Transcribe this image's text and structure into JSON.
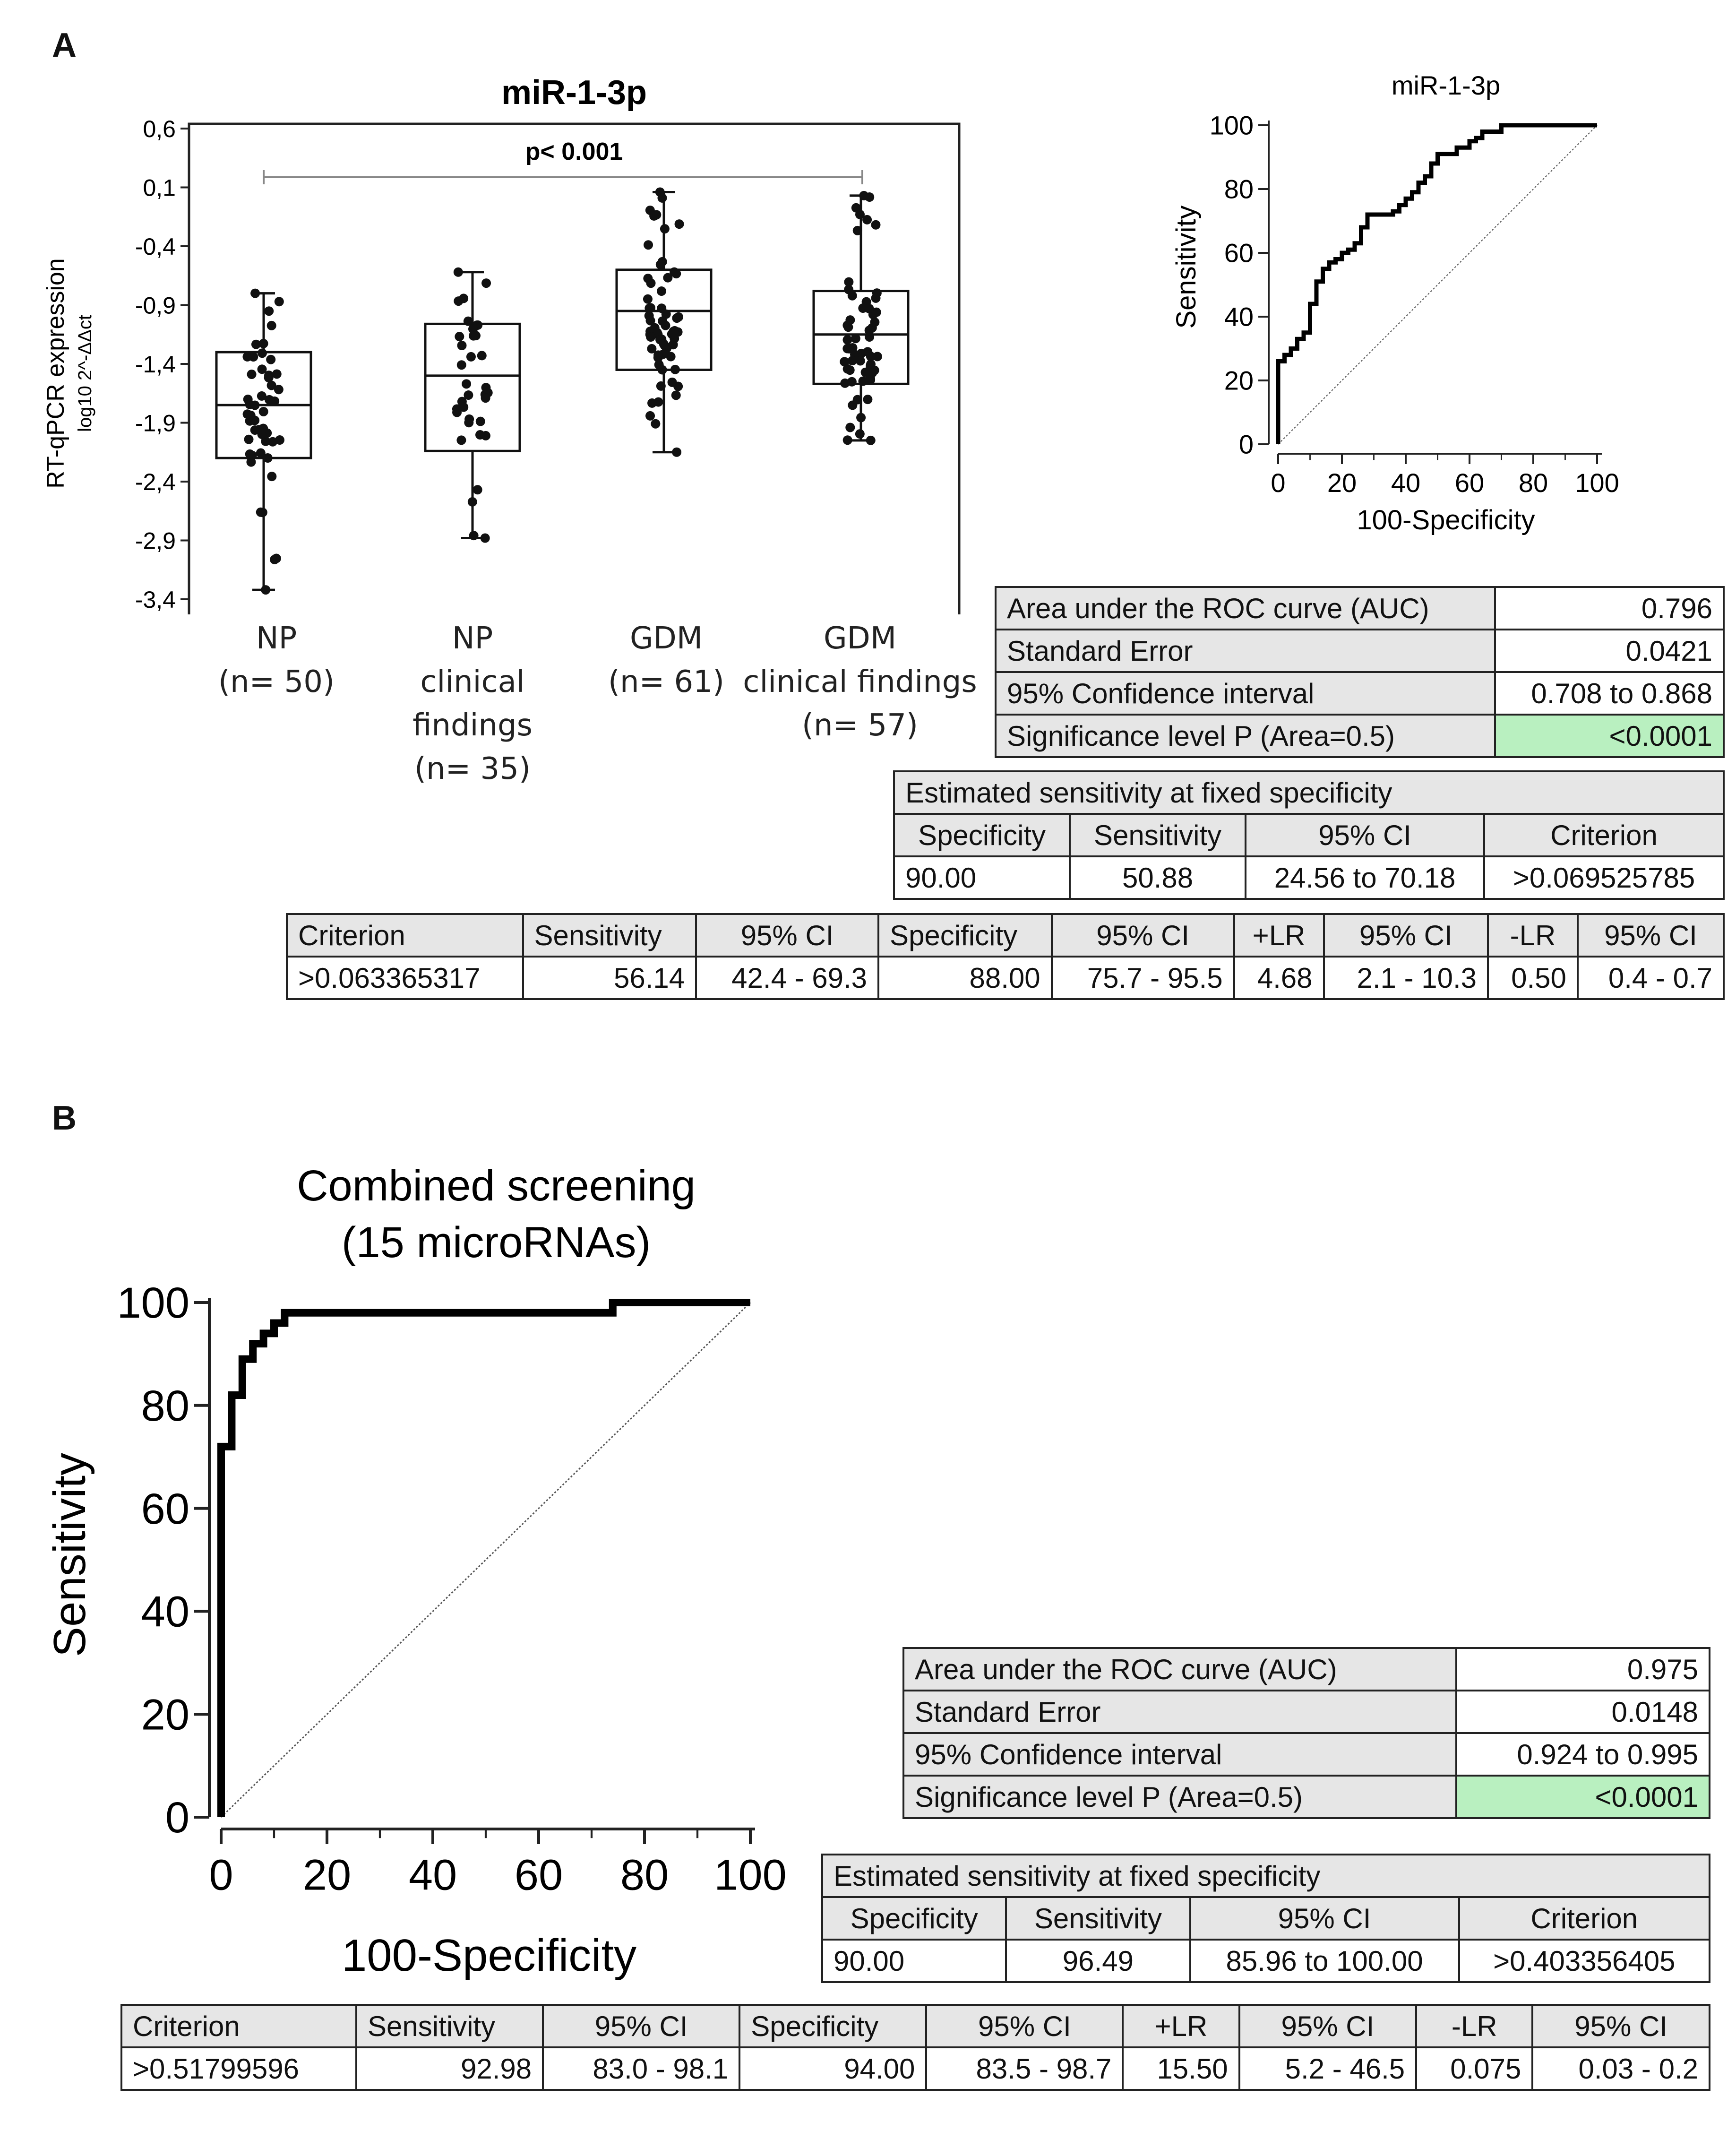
{
  "panels": {
    "a": "A",
    "b": "B"
  },
  "chart_data": [
    {
      "type": "box",
      "title": "miR-1-3p",
      "ylabel": "RT-qPCR expression",
      "ylabel_sub": "log10 2^-ΔΔct",
      "ylim": [
        -3.4,
        0.6
      ],
      "yticks": [
        "0,6",
        "0,1",
        "-0,4",
        "-0,9",
        "-1,4",
        "-1,9",
        "-2,4",
        "-2,9",
        "-3,4"
      ],
      "significance": "p< 0.001",
      "groups": [
        {
          "label1": "NP",
          "label2": "(n= 50)",
          "label3": "",
          "min": -3.32,
          "q1": -2.2,
          "median": -1.75,
          "q3": -1.3,
          "max": -0.8,
          "n": 50
        },
        {
          "label1": "NP",
          "label2": "clinical findings",
          "label3": "(n= 35)",
          "min": -2.88,
          "q1": -2.14,
          "median": -1.5,
          "q3": -1.06,
          "max": -0.62,
          "n": 35
        },
        {
          "label1": "GDM",
          "label2": "(n= 61)",
          "label3": "",
          "min": -2.15,
          "q1": -1.45,
          "median": -0.95,
          "q3": -0.6,
          "max": 0.06,
          "n": 61
        },
        {
          "label1": "GDM",
          "label2": "clinical findings",
          "label3": "(n= 57)",
          "min": -2.05,
          "q1": -1.57,
          "median": -1.15,
          "q3": -0.78,
          "max": 0.03,
          "n": 57
        }
      ]
    },
    {
      "type": "line",
      "title": "miR-1-3p",
      "xlabel": "100-Specificity",
      "ylabel": "Sensitivity",
      "xlim": [
        0,
        100
      ],
      "ylim": [
        0,
        100
      ],
      "xticks": [
        "0",
        "20",
        "40",
        "60",
        "80",
        "100"
      ],
      "yticks": [
        "0",
        "20",
        "40",
        "60",
        "80",
        "100"
      ],
      "roc_x": [
        0,
        0,
        2,
        2,
        4,
        4,
        6,
        6,
        8,
        8,
        10,
        10,
        12,
        12,
        14,
        14,
        16,
        16,
        18,
        18,
        20,
        20,
        22,
        22,
        24,
        24,
        26,
        26,
        28,
        28,
        32,
        32,
        36,
        36,
        38,
        38,
        40,
        40,
        42,
        42,
        44,
        44,
        46,
        46,
        48,
        48,
        50,
        50,
        54,
        54,
        56,
        56,
        60,
        60,
        62,
        62,
        64,
        64,
        66,
        66,
        70,
        70,
        76,
        76,
        100
      ],
      "roc_y": [
        0,
        26,
        26,
        28,
        28,
        30,
        30,
        33,
        33,
        35,
        35,
        44,
        44,
        51,
        51,
        55,
        55,
        57,
        57,
        58,
        58,
        60,
        60,
        61,
        61,
        63,
        63,
        68,
        68,
        72,
        72,
        72,
        72,
        73,
        73,
        75,
        75,
        77,
        77,
        79,
        79,
        82,
        82,
        84,
        84,
        88,
        88,
        91,
        91,
        91,
        91,
        93,
        93,
        95,
        95,
        96,
        96,
        98,
        98,
        98,
        98,
        100,
        100,
        100,
        100
      ],
      "diagonal": true
    },
    {
      "type": "line",
      "title": "Combined screening",
      "title_line2": "(15 microRNAs)",
      "xlabel": "100-Specificity",
      "ylabel": "Sensitivity",
      "xlim": [
        0,
        100
      ],
      "ylim": [
        0,
        100
      ],
      "xticks": [
        "0",
        "20",
        "40",
        "60",
        "80",
        "100"
      ],
      "yticks": [
        "0",
        "20",
        "40",
        "60",
        "80",
        "100"
      ],
      "roc_x": [
        0,
        0,
        2,
        2,
        4,
        4,
        6,
        6,
        8,
        8,
        10,
        10,
        12,
        12,
        74,
        74,
        100
      ],
      "roc_y": [
        0,
        72,
        72,
        82,
        82,
        89,
        89,
        92,
        92,
        94,
        94,
        96,
        96,
        98,
        98,
        100,
        100
      ],
      "diagonal": true
    }
  ],
  "tables": {
    "a_auc": [
      [
        "Area under the ROC curve (AUC)",
        "0.796"
      ],
      [
        "Standard Error",
        "0.0421"
      ],
      [
        "95% Confidence interval",
        "0.708 to 0.868"
      ],
      [
        "Significance level P (Area=0.5)",
        "<0.0001"
      ]
    ],
    "a_fixed": {
      "title": "Estimated sensitivity at fixed specificity",
      "headers": [
        "Specificity",
        "Sensitivity",
        "95% CI",
        "Criterion"
      ],
      "row": [
        "90.00",
        "50.88",
        "24.56 to 70.18",
        ">0.069525785"
      ]
    },
    "a_criterion": {
      "headers": [
        "Criterion",
        "Sensitivity",
        "95% CI",
        "Specificity",
        "95% CI",
        "+LR",
        "95% CI",
        "-LR",
        "95% CI"
      ],
      "row": [
        ">0.063365317",
        "56.14",
        "42.4 - 69.3",
        "88.00",
        "75.7 - 95.5",
        "4.68",
        "2.1 - 10.3",
        "0.50",
        "0.4 - 0.7"
      ]
    },
    "b_auc": [
      [
        "Area under the ROC curve (AUC)",
        "0.975"
      ],
      [
        "Standard Error",
        "0.0148"
      ],
      [
        "95% Confidence interval",
        "0.924 to 0.995"
      ],
      [
        "Significance level P (Area=0.5)",
        "<0.0001"
      ]
    ],
    "b_fixed": {
      "title": "Estimated sensitivity at fixed specificity",
      "headers": [
        "Specificity",
        "Sensitivity",
        "95% CI",
        "Criterion"
      ],
      "row": [
        "90.00",
        "96.49",
        "85.96 to 100.00",
        ">0.403356405"
      ]
    },
    "b_criterion": {
      "headers": [
        "Criterion",
        "Sensitivity",
        "95% CI",
        "Specificity",
        "95% CI",
        "+LR",
        "95% CI",
        "-LR",
        "95% CI"
      ],
      "row": [
        ">0.51799596",
        "92.98",
        "83.0 - 98.1",
        "94.00",
        "83.5 - 98.7",
        "15.50",
        "5.2 - 46.5",
        "0.075",
        "0.03 - 0.2"
      ]
    }
  }
}
